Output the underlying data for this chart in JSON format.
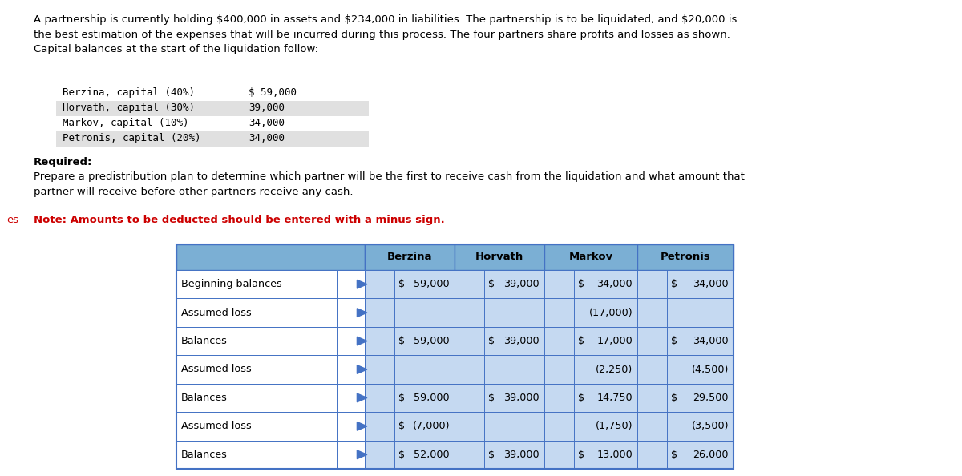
{
  "paragraph": "A partnership is currently holding $400,000 in assets and $234,000 in liabilities. The partnership is to be liquidated, and $20,000 is\nthe best estimation of the expenses that will be incurred during this process. The four partners share profits and losses as shown.\nCapital balances at the start of the liquidation follow:",
  "capital_items": [
    [
      "Berzina, capital (40%)",
      "$ 59,000"
    ],
    [
      "Horvath, capital (30%)",
      "39,000"
    ],
    [
      "Markov, capital (10%)",
      "34,000"
    ],
    [
      "Petronis, capital (20%)",
      "34,000"
    ]
  ],
  "required_label": "Required:",
  "required_text": "Prepare a predistribution plan to determine which partner will be the first to receive cash from the liquidation and what amount that\npartner will receive before other partners receive any cash.",
  "note_text": "Note: Amounts to be deducted should be entered with a minus sign.",
  "left_label": "es",
  "table_rows": [
    {
      "label": "Beginning balances",
      "berzina_d": "$",
      "berzina_v": "59,000",
      "horvath_d": "$",
      "horvath_v": "39,000",
      "markov_d": "$",
      "markov_v": "34,000",
      "petronis_d": "$",
      "petronis_v": "34,000",
      "has_arrow": true
    },
    {
      "label": "Assumed loss",
      "berzina_d": "",
      "berzina_v": "",
      "horvath_d": "",
      "horvath_v": "",
      "markov_d": "",
      "markov_v": "(17,000)",
      "petronis_d": "",
      "petronis_v": "",
      "has_arrow": false
    },
    {
      "label": "Balances",
      "berzina_d": "$",
      "berzina_v": "59,000",
      "horvath_d": "$",
      "horvath_v": "39,000",
      "markov_d": "$",
      "markov_v": "17,000",
      "petronis_d": "$",
      "petronis_v": "34,000",
      "has_arrow": true
    },
    {
      "label": "Assumed loss",
      "berzina_d": "",
      "berzina_v": "",
      "horvath_d": "",
      "horvath_v": "",
      "markov_d": "",
      "markov_v": "(2,250)",
      "petronis_d": "",
      "petronis_v": "(4,500)",
      "has_arrow": false
    },
    {
      "label": "Balances",
      "berzina_d": "$",
      "berzina_v": "59,000",
      "horvath_d": "$",
      "horvath_v": "39,000",
      "markov_d": "$",
      "markov_v": "14,750",
      "petronis_d": "$",
      "petronis_v": "29,500",
      "has_arrow": true
    },
    {
      "label": "Assumed loss",
      "berzina_d": "$",
      "berzina_v": "(7,000)",
      "horvath_d": "",
      "horvath_v": "",
      "markov_d": "",
      "markov_v": "(1,750)",
      "petronis_d": "",
      "petronis_v": "(3,500)",
      "has_arrow": true
    },
    {
      "label": "Balances",
      "berzina_d": "$",
      "berzina_v": "52,000",
      "horvath_d": "$",
      "horvath_v": "39,000",
      "markov_d": "$",
      "markov_v": "13,000",
      "petronis_d": "$",
      "petronis_v": "26,000",
      "has_arrow": true
    }
  ],
  "header_bg": "#7bafd4",
  "partner_bg": "#c5d9f1",
  "white_bg": "#ffffff",
  "border_color": "#4472c4",
  "text_color": "#000000",
  "note_color": "#cc0000",
  "bg_color": "#ffffff"
}
